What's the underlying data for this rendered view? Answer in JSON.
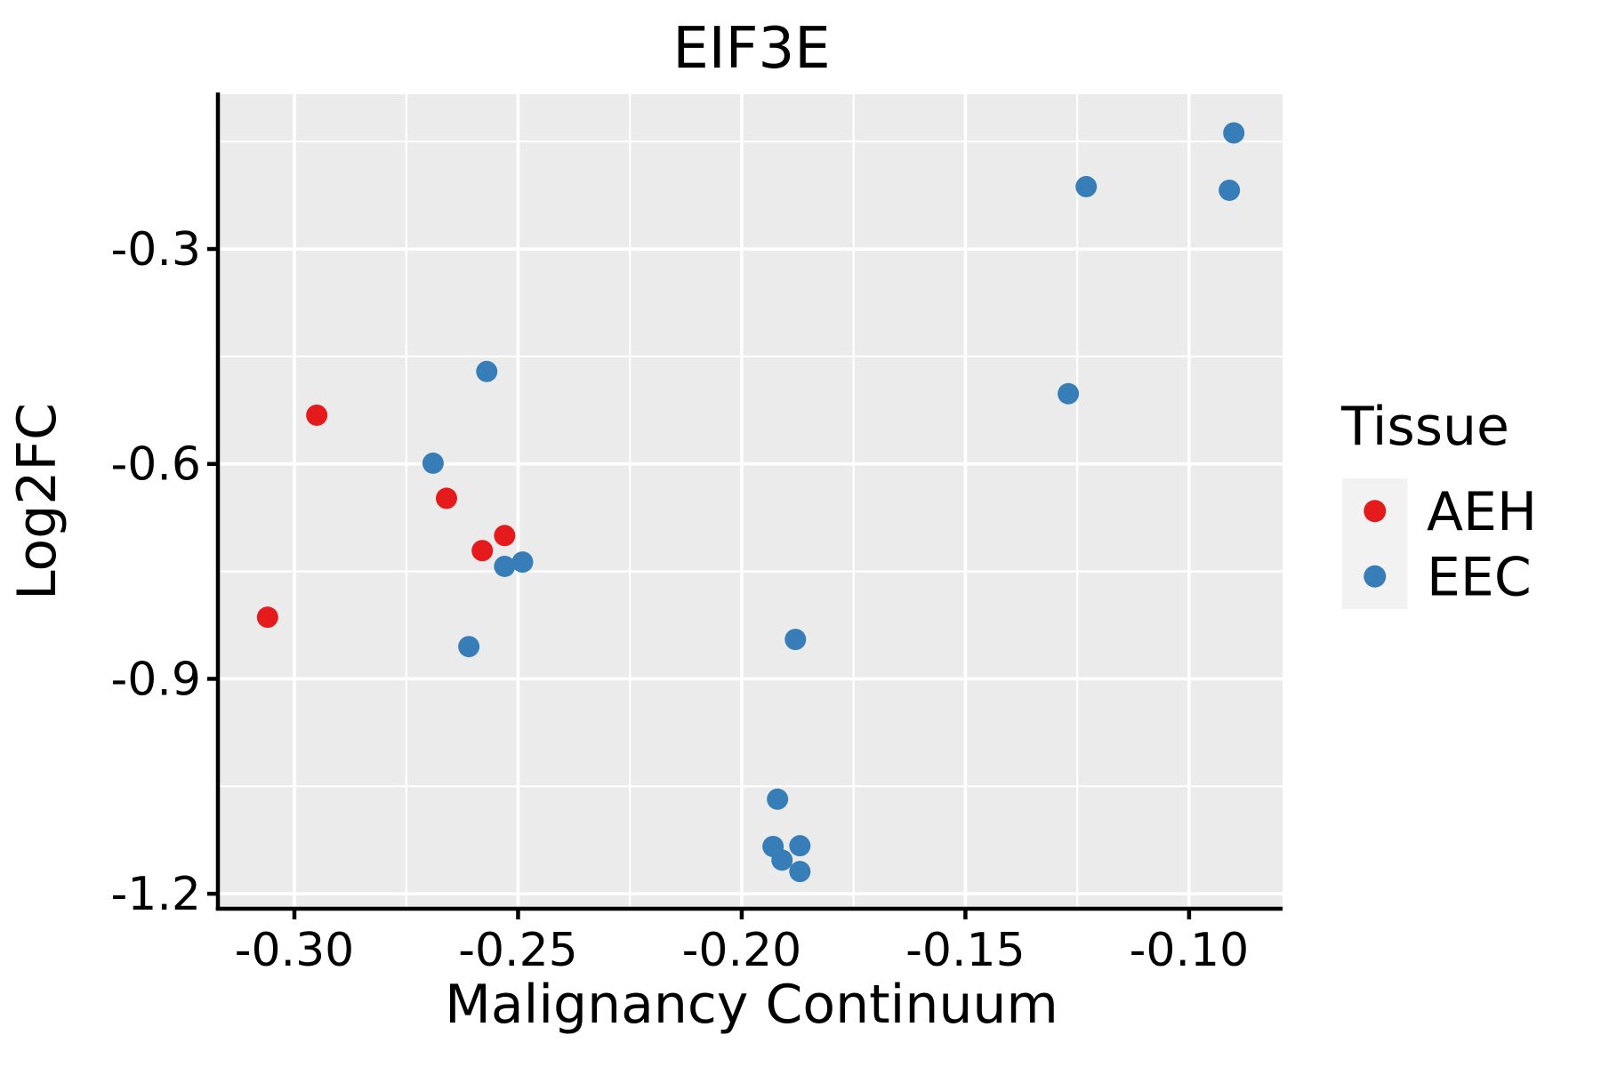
{
  "title": "EIF3E",
  "colors": {
    "background": "#FFFFFF",
    "panel_bg": "#EBEBEB",
    "grid": "#FFFFFF",
    "axis_line": "#000000",
    "text": "#000000",
    "legend_key_bg": "#F2F2F2",
    "aeh": "#E41A1C",
    "eec": "#377EB8"
  },
  "legend": {
    "title": "Tissue",
    "items": [
      {
        "label": "AEH",
        "color": "#E41A1C"
      },
      {
        "label": "EEC",
        "color": "#377EB8"
      }
    ]
  },
  "chart_data": {
    "type": "scatter",
    "title": "EIF3E",
    "xlabel": "Malignancy Continuum",
    "ylabel": "Log2FC",
    "xlim": [
      -0.3167,
      -0.0791
    ],
    "ylim": [
      -1.2209,
      -0.084
    ],
    "x_ticks": [
      -0.3,
      -0.25,
      -0.2,
      -0.15,
      -0.1
    ],
    "x_tick_labels": [
      "-0.30",
      "-0.25",
      "-0.20",
      "-0.15",
      "-0.10"
    ],
    "x_minor_ticks": [
      -0.275,
      -0.225,
      -0.175,
      -0.125
    ],
    "y_ticks": [
      -0.3,
      -0.6,
      -0.9,
      -1.2
    ],
    "y_tick_labels": [
      "-0.3",
      "-0.6",
      "-0.9",
      "-1.2"
    ],
    "y_minor_ticks": [
      -0.15,
      -0.45,
      -0.75,
      -1.05
    ],
    "grid": true,
    "legend_title": "Tissue",
    "legend_position": "right",
    "point_radius": 12,
    "series": [
      {
        "name": "AEH",
        "color": "#E41A1C",
        "points": [
          [
            -0.306,
            -0.814
          ],
          [
            -0.295,
            -0.532
          ],
          [
            -0.266,
            -0.648
          ],
          [
            -0.258,
            -0.721
          ],
          [
            -0.253,
            -0.7
          ]
        ]
      },
      {
        "name": "EEC",
        "color": "#377EB8",
        "points": [
          [
            -0.269,
            -0.599
          ],
          [
            -0.261,
            -0.855
          ],
          [
            -0.257,
            -0.471
          ],
          [
            -0.253,
            -0.743
          ],
          [
            -0.249,
            -0.737
          ],
          [
            -0.193,
            -1.134
          ],
          [
            -0.192,
            -1.068
          ],
          [
            -0.191,
            -1.153
          ],
          [
            -0.188,
            -0.845
          ],
          [
            -0.187,
            -1.133
          ],
          [
            -0.187,
            -1.169
          ],
          [
            -0.127,
            -0.502
          ],
          [
            -0.123,
            -0.213
          ],
          [
            -0.091,
            -0.218
          ],
          [
            -0.09,
            -0.138
          ]
        ]
      }
    ]
  }
}
